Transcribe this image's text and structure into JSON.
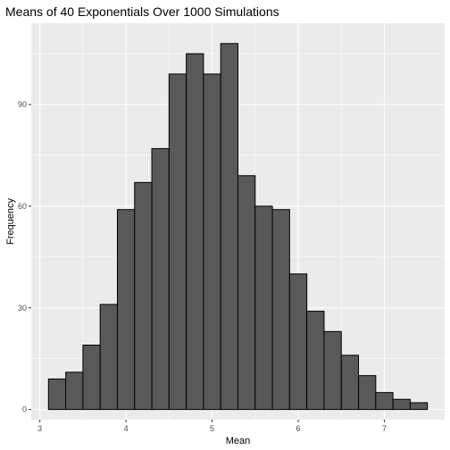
{
  "chart_data": {
    "type": "bar",
    "title": "Means of 40 Exponentials Over 1000 Simulations",
    "xlabel": "Mean",
    "ylabel": "Frequency",
    "xlim": [
      2.9,
      7.7
    ],
    "ylim": [
      -3,
      114
    ],
    "x_ticks": [
      3,
      4,
      5,
      6,
      7
    ],
    "y_ticks": [
      0,
      30,
      60,
      90
    ],
    "bin_width": 0.2,
    "bins": [
      {
        "x0": 3.1,
        "count": 9
      },
      {
        "x0": 3.3,
        "count": 11
      },
      {
        "x0": 3.5,
        "count": 19
      },
      {
        "x0": 3.7,
        "count": 31
      },
      {
        "x0": 3.9,
        "count": 59
      },
      {
        "x0": 4.1,
        "count": 67
      },
      {
        "x0": 4.3,
        "count": 77
      },
      {
        "x0": 4.5,
        "count": 99
      },
      {
        "x0": 4.7,
        "count": 105
      },
      {
        "x0": 4.9,
        "count": 99
      },
      {
        "x0": 5.1,
        "count": 108
      },
      {
        "x0": 5.3,
        "count": 69
      },
      {
        "x0": 5.5,
        "count": 60
      },
      {
        "x0": 5.7,
        "count": 59
      },
      {
        "x0": 5.9,
        "count": 40
      },
      {
        "x0": 6.1,
        "count": 29
      },
      {
        "x0": 6.3,
        "count": 23
      },
      {
        "x0": 6.5,
        "count": 16
      },
      {
        "x0": 6.7,
        "count": 10
      },
      {
        "x0": 6.9,
        "count": 5
      },
      {
        "x0": 7.1,
        "count": 3
      },
      {
        "x0": 7.3,
        "count": 2
      }
    ],
    "grid": true,
    "colors": {
      "panel": "#ebebeb",
      "grid_major": "#ffffff",
      "bar_fill": "#595959",
      "bar_stroke": "#000000",
      "axis_text": "#4d4d4d"
    }
  }
}
